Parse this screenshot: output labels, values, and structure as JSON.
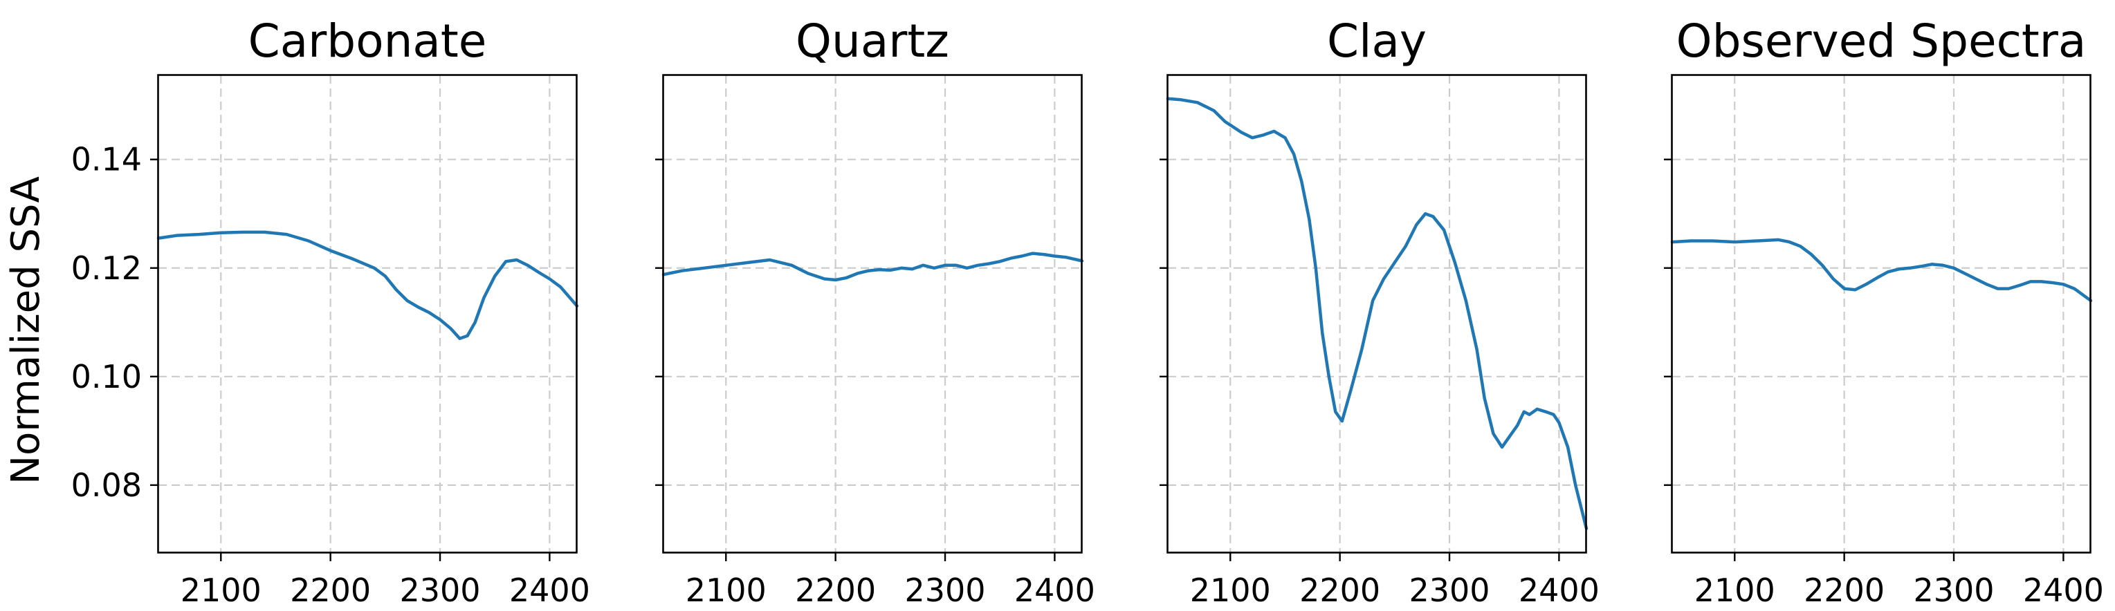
{
  "chart_data": [
    {
      "type": "line",
      "title": "Carbonate",
      "ylabel": "Normalized SSA",
      "xlim": [
        2043,
        2425
      ],
      "ylim": [
        0.0675,
        0.1555
      ],
      "xticks": [
        "2100",
        "2200",
        "2300",
        "2400"
      ],
      "yticks": [
        "0.08",
        "0.10",
        "0.12",
        "0.14"
      ],
      "grid": true,
      "color": "#1f77b4",
      "x": [
        2043,
        2060,
        2080,
        2100,
        2120,
        2140,
        2160,
        2180,
        2200,
        2220,
        2240,
        2250,
        2260,
        2270,
        2280,
        2290,
        2300,
        2310,
        2318,
        2325,
        2332,
        2340,
        2350,
        2360,
        2370,
        2380,
        2390,
        2400,
        2410,
        2425
      ],
      "y": [
        0.1255,
        0.126,
        0.1262,
        0.1265,
        0.1266,
        0.1266,
        0.1262,
        0.125,
        0.1232,
        0.1217,
        0.12,
        0.1185,
        0.116,
        0.114,
        0.1128,
        0.1118,
        0.1105,
        0.1088,
        0.107,
        0.1075,
        0.11,
        0.1145,
        0.1185,
        0.1212,
        0.1215,
        0.1205,
        0.1192,
        0.118,
        0.1165,
        0.113
      ]
    },
    {
      "type": "line",
      "title": "Quartz",
      "xlim": [
        2043,
        2425
      ],
      "ylim": [
        0.0675,
        0.1555
      ],
      "xticks": [
        "2100",
        "2200",
        "2300",
        "2400"
      ],
      "grid": true,
      "color": "#1f77b4",
      "x": [
        2043,
        2060,
        2080,
        2100,
        2120,
        2140,
        2160,
        2175,
        2190,
        2200,
        2210,
        2220,
        2230,
        2240,
        2250,
        2260,
        2270,
        2280,
        2290,
        2300,
        2310,
        2320,
        2330,
        2340,
        2350,
        2360,
        2370,
        2380,
        2390,
        2400,
        2410,
        2425
      ],
      "y": [
        0.1188,
        0.1195,
        0.12,
        0.1205,
        0.121,
        0.1215,
        0.1205,
        0.119,
        0.118,
        0.1178,
        0.1182,
        0.119,
        0.1195,
        0.1197,
        0.1196,
        0.12,
        0.1198,
        0.1205,
        0.12,
        0.1205,
        0.1205,
        0.12,
        0.1205,
        0.1208,
        0.1212,
        0.1218,
        0.1222,
        0.1227,
        0.1225,
        0.1222,
        0.122,
        0.1213
      ]
    },
    {
      "type": "line",
      "title": "Clay",
      "xlim": [
        2043,
        2425
      ],
      "ylim": [
        0.0675,
        0.1555
      ],
      "xticks": [
        "2100",
        "2200",
        "2300",
        "2400"
      ],
      "grid": true,
      "color": "#1f77b4",
      "x": [
        2043,
        2055,
        2070,
        2085,
        2095,
        2110,
        2120,
        2130,
        2140,
        2150,
        2158,
        2165,
        2172,
        2178,
        2184,
        2190,
        2196,
        2202,
        2210,
        2220,
        2230,
        2240,
        2250,
        2260,
        2270,
        2278,
        2285,
        2295,
        2305,
        2315,
        2325,
        2332,
        2340,
        2348,
        2355,
        2362,
        2368,
        2373,
        2380,
        2388,
        2395,
        2400,
        2408,
        2415,
        2425
      ],
      "y": [
        0.1512,
        0.151,
        0.1505,
        0.149,
        0.147,
        0.145,
        0.144,
        0.1445,
        0.1452,
        0.144,
        0.141,
        0.136,
        0.129,
        0.12,
        0.108,
        0.1,
        0.0935,
        0.0918,
        0.0975,
        0.105,
        0.114,
        0.118,
        0.121,
        0.124,
        0.128,
        0.13,
        0.1295,
        0.127,
        0.121,
        0.114,
        0.105,
        0.096,
        0.0895,
        0.087,
        0.089,
        0.091,
        0.0935,
        0.093,
        0.094,
        0.0935,
        0.093,
        0.0915,
        0.087,
        0.08,
        0.072
      ]
    },
    {
      "type": "line",
      "title": "Observed Spectra",
      "xlim": [
        2043,
        2425
      ],
      "ylim": [
        0.0675,
        0.1555
      ],
      "xticks": [
        "2100",
        "2200",
        "2300",
        "2400"
      ],
      "grid": true,
      "color": "#1f77b4",
      "x": [
        2043,
        2060,
        2080,
        2100,
        2120,
        2140,
        2150,
        2160,
        2170,
        2180,
        2190,
        2200,
        2210,
        2220,
        2230,
        2240,
        2250,
        2260,
        2270,
        2280,
        2290,
        2300,
        2310,
        2320,
        2330,
        2340,
        2350,
        2360,
        2370,
        2380,
        2390,
        2400,
        2410,
        2425
      ],
      "y": [
        0.1248,
        0.125,
        0.125,
        0.1248,
        0.125,
        0.1252,
        0.1248,
        0.124,
        0.1225,
        0.1205,
        0.118,
        0.1162,
        0.116,
        0.117,
        0.1182,
        0.1193,
        0.1198,
        0.12,
        0.1203,
        0.1207,
        0.1205,
        0.12,
        0.119,
        0.118,
        0.117,
        0.1162,
        0.1162,
        0.1168,
        0.1175,
        0.1175,
        0.1173,
        0.117,
        0.1162,
        0.114
      ]
    }
  ]
}
